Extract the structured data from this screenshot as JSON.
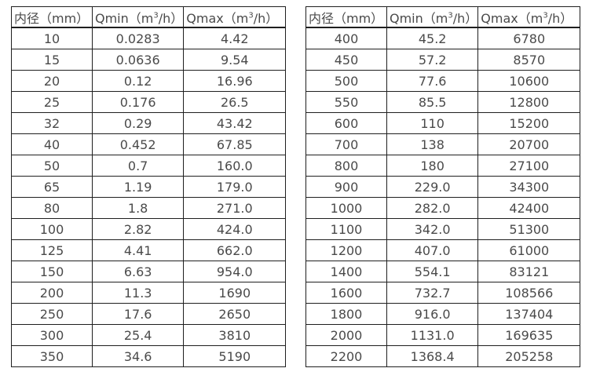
{
  "page": {
    "background_color": "#ffffff",
    "text_color": "#4a4a4a",
    "border_color": "#1f1f1f"
  },
  "tables": [
    {
      "name": "flow-range-table-small-diameters",
      "headers": [
        "内径（mm）",
        "Qmin（m³/h）",
        "Qmax（m³/h）"
      ],
      "rows": [
        [
          "10",
          "0.0283",
          "4.42"
        ],
        [
          "15",
          "0.0636",
          "9.54"
        ],
        [
          "20",
          "0.12",
          "16.96"
        ],
        [
          "25",
          "0.176",
          "26.5"
        ],
        [
          "32",
          "0.29",
          "43.42"
        ],
        [
          "40",
          "0.452",
          "67.85"
        ],
        [
          "50",
          "0.7",
          "160.0"
        ],
        [
          "65",
          "1.19",
          "179.0"
        ],
        [
          "80",
          "1.8",
          "271.0"
        ],
        [
          "100",
          "2.82",
          "424.0"
        ],
        [
          "125",
          "4.41",
          "662.0"
        ],
        [
          "150",
          "6.63",
          "954.0"
        ],
        [
          "200",
          "11.3",
          "1690"
        ],
        [
          "250",
          "17.6",
          "2650"
        ],
        [
          "300",
          "25.4",
          "3810"
        ],
        [
          "350",
          "34.6",
          "5190"
        ]
      ]
    },
    {
      "name": "flow-range-table-large-diameters",
      "headers": [
        "内径（mm）",
        "Qmin（m³/h）",
        "Qmax（m³/h）"
      ],
      "rows": [
        [
          "400",
          "45.2",
          "6780"
        ],
        [
          "450",
          "57.2",
          "8570"
        ],
        [
          "500",
          "77.6",
          "10600"
        ],
        [
          "550",
          "85.5",
          "12800"
        ],
        [
          "600",
          "110",
          "15200"
        ],
        [
          "700",
          "138",
          "20700"
        ],
        [
          "800",
          "180",
          "27100"
        ],
        [
          "900",
          "229.0",
          "34300"
        ],
        [
          "1000",
          "282.0",
          "42400"
        ],
        [
          "1100",
          "342.0",
          "51300"
        ],
        [
          "1200",
          "407.0",
          "61000"
        ],
        [
          "1400",
          "554.1",
          "83121"
        ],
        [
          "1600",
          "732.7",
          "108566"
        ],
        [
          "1800",
          "916.0",
          "137404"
        ],
        [
          "2000",
          "1131.0",
          "169635"
        ],
        [
          "2200",
          "1368.4",
          "205258"
        ]
      ]
    }
  ]
}
